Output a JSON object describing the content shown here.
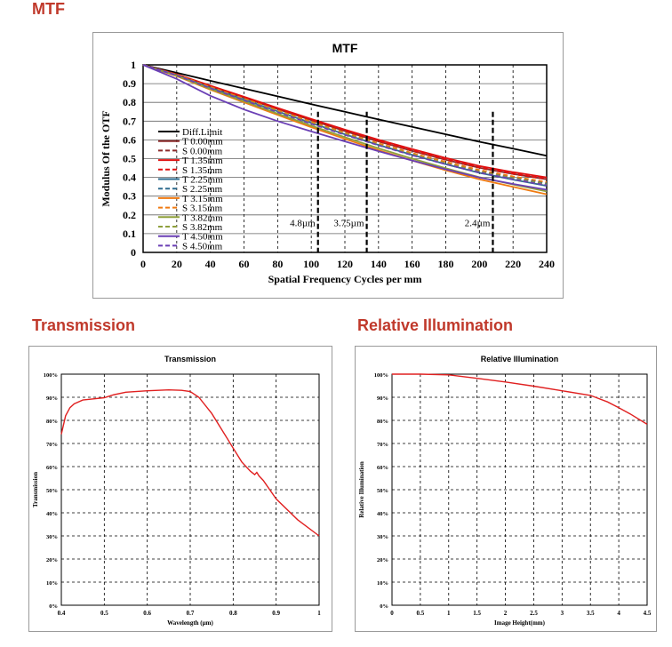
{
  "sections": {
    "mtf": "MTF",
    "transmission": "Transmission",
    "relative_illumination": "Relative Illumination"
  },
  "colors": {
    "section_title": "#c0392b",
    "curve": "#e02020"
  },
  "chart_data": [
    {
      "id": "mtf",
      "type": "line",
      "title": "MTF",
      "xlabel": "Spatial Frequency Cycles per mm",
      "ylabel": "Modulus Of the OTF",
      "xlim": [
        0,
        240
      ],
      "ylim": [
        0,
        1
      ],
      "xticks": [
        "0",
        "20",
        "40",
        "60",
        "80",
        "100",
        "120",
        "140",
        "160",
        "180",
        "200",
        "220",
        "240"
      ],
      "yticks": [
        "0",
        "0.1",
        "0.2",
        "0.3",
        "0.4",
        "0.5",
        "0.6",
        "0.7",
        "0.8",
        "0.9",
        "1"
      ],
      "grid": true,
      "legend_position": "bottom-left",
      "annotations": [
        {
          "text": "4.8µm",
          "x": 104
        },
        {
          "text": "3.75µm",
          "x": 133
        },
        {
          "text": "2.4µm",
          "x": 208
        }
      ],
      "x": [
        0,
        20,
        40,
        60,
        80,
        100,
        120,
        140,
        160,
        180,
        200,
        220,
        240
      ],
      "series": [
        {
          "name": "Diff.Limit",
          "color": "#000000",
          "dash": false,
          "values": [
            1,
            0.958,
            0.915,
            0.874,
            0.832,
            0.79,
            0.75,
            0.709,
            0.669,
            0.63,
            0.59,
            0.553,
            0.515
          ]
        },
        {
          "name": "T 0.00mm",
          "color": "#8b2a2a",
          "dash": false,
          "values": [
            1,
            0.948,
            0.885,
            0.825,
            0.764,
            0.705,
            0.647,
            0.592,
            0.541,
            0.494,
            0.451,
            0.418,
            0.39
          ]
        },
        {
          "name": "S 0.00mm",
          "color": "#8b2a2a",
          "dash": true,
          "values": [
            1,
            0.948,
            0.885,
            0.825,
            0.764,
            0.705,
            0.647,
            0.592,
            0.541,
            0.494,
            0.451,
            0.418,
            0.39
          ]
        },
        {
          "name": "T 1.35mm",
          "color": "#e01010",
          "dash": false,
          "values": [
            1,
            0.95,
            0.889,
            0.83,
            0.77,
            0.712,
            0.655,
            0.601,
            0.551,
            0.504,
            0.461,
            0.428,
            0.4
          ]
        },
        {
          "name": "S 1.35mm",
          "color": "#e01010",
          "dash": true,
          "values": [
            1,
            0.949,
            0.887,
            0.828,
            0.767,
            0.708,
            0.65,
            0.595,
            0.544,
            0.497,
            0.454,
            0.42,
            0.392
          ]
        },
        {
          "name": "T 2.25mm",
          "color": "#2e6b8f",
          "dash": false,
          "values": [
            1,
            0.945,
            0.878,
            0.815,
            0.752,
            0.69,
            0.63,
            0.573,
            0.52,
            0.47,
            0.424,
            0.388,
            0.355
          ]
        },
        {
          "name": "S 2.25mm",
          "color": "#2e6b8f",
          "dash": true,
          "values": [
            1,
            0.946,
            0.88,
            0.818,
            0.755,
            0.694,
            0.635,
            0.578,
            0.526,
            0.478,
            0.433,
            0.398,
            0.367
          ]
        },
        {
          "name": "T 3.15mm",
          "color": "#f07a10",
          "dash": false,
          "values": [
            1,
            0.94,
            0.868,
            0.8,
            0.733,
            0.668,
            0.605,
            0.545,
            0.49,
            0.438,
            0.39,
            0.35,
            0.31
          ]
        },
        {
          "name": "S 3.15mm",
          "color": "#f07a10",
          "dash": true,
          "values": [
            1,
            0.947,
            0.882,
            0.82,
            0.758,
            0.697,
            0.638,
            0.582,
            0.53,
            0.483,
            0.44,
            0.405,
            0.375
          ]
        },
        {
          "name": "T 3.82mm",
          "color": "#8fa03c",
          "dash": false,
          "values": [
            1,
            0.942,
            0.872,
            0.806,
            0.74,
            0.676,
            0.614,
            0.555,
            0.5,
            0.449,
            0.401,
            0.362,
            0.325
          ]
        },
        {
          "name": "S 3.82mm",
          "color": "#8fa03c",
          "dash": true,
          "values": [
            1,
            0.945,
            0.878,
            0.815,
            0.752,
            0.69,
            0.632,
            0.575,
            0.523,
            0.475,
            0.43,
            0.395,
            0.362
          ]
        },
        {
          "name": "T 4.50mm",
          "color": "#6a3fb5",
          "dash": false,
          "values": [
            1,
            0.925,
            0.835,
            0.762,
            0.7,
            0.645,
            0.592,
            0.54,
            0.49,
            0.443,
            0.399,
            0.365,
            0.334
          ]
        },
        {
          "name": "S 4.50mm",
          "color": "#6a3fb5",
          "dash": true,
          "values": [
            1,
            0.944,
            0.876,
            0.812,
            0.748,
            0.686,
            0.627,
            0.571,
            0.518,
            0.47,
            0.426,
            0.39,
            0.358
          ]
        }
      ]
    },
    {
      "id": "transmission",
      "type": "line",
      "title": "Transmission",
      "xlabel": "Wavelength (µm)",
      "ylabel": "Transmission",
      "xlim": [
        0.4,
        1
      ],
      "ylim": [
        0,
        100
      ],
      "xticks": [
        "0.4",
        "0.5",
        "0.6",
        "0.7",
        "0.8",
        "0.9",
        "1"
      ],
      "yticks": [
        "0%",
        "10%",
        "20%",
        "30%",
        "40%",
        "50%",
        "60%",
        "70%",
        "80%",
        "90%",
        "100%"
      ],
      "grid": true,
      "x": [
        0.4,
        0.41,
        0.42,
        0.43,
        0.45,
        0.47,
        0.5,
        0.52,
        0.55,
        0.6,
        0.65,
        0.68,
        0.7,
        0.72,
        0.75,
        0.78,
        0.8,
        0.82,
        0.84,
        0.85,
        0.855,
        0.86,
        0.87,
        0.9,
        0.95,
        1.0
      ],
      "series": [
        {
          "name": "",
          "values": [
            74,
            82,
            85.5,
            87.2,
            88.8,
            89.2,
            89.8,
            91,
            92.2,
            92.8,
            93.2,
            93,
            92.5,
            90,
            83,
            74,
            68,
            62,
            58,
            56.5,
            57.5,
            56,
            54,
            46,
            37,
            30
          ]
        }
      ]
    },
    {
      "id": "relative_illumination",
      "type": "line",
      "title": "Relative Illumination",
      "xlabel": "Image Height(mm)",
      "ylabel": "Relative Illumination",
      "xlim": [
        0,
        4.5
      ],
      "ylim": [
        0,
        100
      ],
      "xticks": [
        "0",
        "0.5",
        "1",
        "1.5",
        "2",
        "2.5",
        "3",
        "3.5",
        "4",
        "4.5"
      ],
      "yticks": [
        "0%",
        "10%",
        "20%",
        "30%",
        "40%",
        "50%",
        "60%",
        "70%",
        "80%",
        "90%",
        "100%"
      ],
      "grid": true,
      "x": [
        0,
        0.5,
        1,
        1.5,
        2,
        2.5,
        3,
        3.5,
        3.8,
        4,
        4.2,
        4.5
      ],
      "series": [
        {
          "name": "",
          "values": [
            100,
            100,
            99.7,
            98.2,
            96.6,
            94.8,
            92.8,
            90.8,
            88,
            85.5,
            82.8,
            78.3
          ]
        }
      ]
    }
  ]
}
